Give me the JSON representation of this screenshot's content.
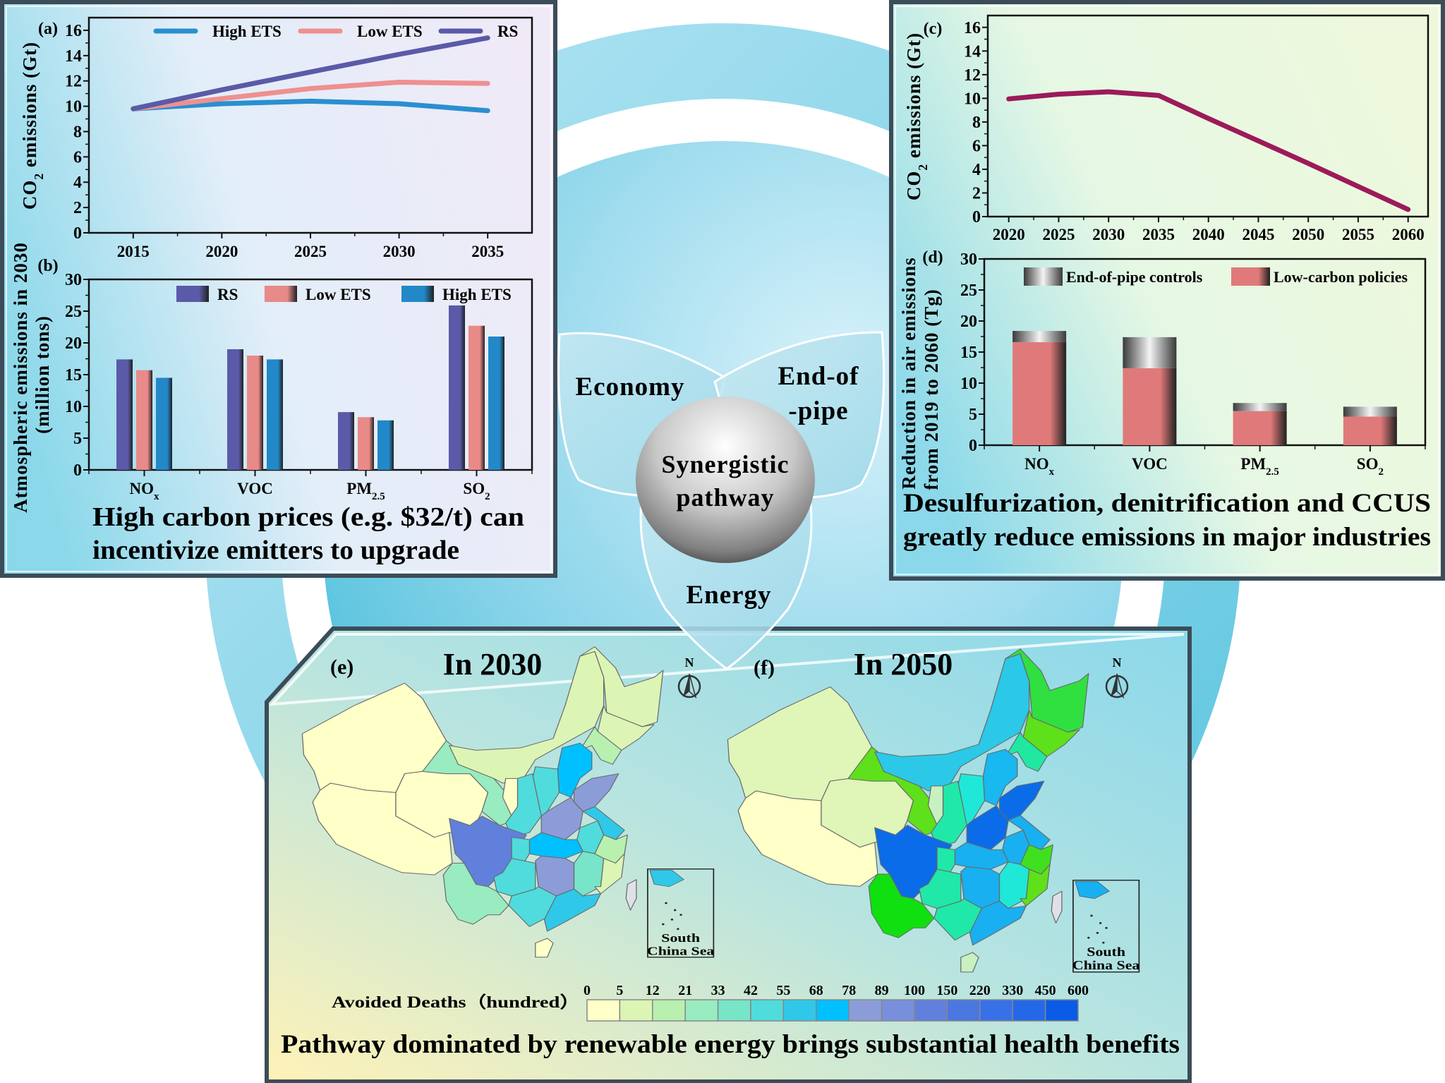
{
  "center": {
    "economy": "Economy",
    "end_of_pipe": [
      "End-of",
      "-pipe"
    ],
    "energy": "Energy",
    "core": [
      "Synergistic",
      "pathway"
    ]
  },
  "panel_left": {
    "caption": [
      "High carbon prices (e.g. $32/t) can",
      "incentivize emitters to upgrade"
    ]
  },
  "panel_right": {
    "caption": [
      "Desulfurization, denitrification and CCUS",
      "greatly reduce emissions in major industries"
    ]
  },
  "panel_bottom": {
    "caption": "Pathway dominated by renewable energy brings substantial health benefits",
    "north_label": "N",
    "inset_label": [
      "South",
      "China Sea"
    ],
    "legend_title": "Avoided Deaths（hundred）",
    "legend_ticks": [
      "0",
      "5",
      "12",
      "21",
      "33",
      "42",
      "55",
      "68",
      "78",
      "89",
      "100",
      "150",
      "220",
      "330",
      "450",
      "600"
    ],
    "legend_colors": [
      "#ffffc8",
      "#dcf5b4",
      "#b8f0b0",
      "#98ecc0",
      "#78e4c8",
      "#50dcdc",
      "#30c8e8",
      "#00c0ff",
      "#8c9cd8",
      "#7890dc",
      "#6080dc",
      "#4a78e0",
      "#3870e8",
      "#2468e8",
      "#0a5ce6"
    ],
    "maps": [
      {
        "panel_label": "(e)",
        "title": "In 2030",
        "region_colors": {
          "xinjiang": "#ffffc8",
          "tibet": "#ffffc8",
          "qinghai": "#ffffc8",
          "gansu": "#98ecc0",
          "inner_mongolia": "#dcf5b4",
          "heilongjiang": "#dcf5b4",
          "jilin": "#dcf5b4",
          "liaoning": "#b8f0b0",
          "hebei": "#00c0ff",
          "shanxi": "#50dcdc",
          "ningxia": "#ffffc8",
          "shaanxi": "#50dcdc",
          "shandong": "#8c9cd8",
          "henan": "#8c9cd8",
          "jiangsu": "#30c8e8",
          "anhui": "#50dcdc",
          "hubei": "#00c0ff",
          "sichuan": "#6080dc",
          "chongqing": "#50dcdc",
          "yunnan": "#98ecc0",
          "guizhou": "#50dcdc",
          "hunan": "#8c9cd8",
          "jiangxi": "#78e4c8",
          "zhejiang": "#b8f0b0",
          "fujian": "#dcf5b4",
          "guangxi": "#50dcdc",
          "guangdong": "#30c8e8",
          "hainan": "#ffffc8",
          "taiwan": "#e0e0e8"
        }
      },
      {
        "panel_label": "(f)",
        "title": "In 2050",
        "region_colors": {
          "xinjiang": "#e0f5b8",
          "tibet": "#ffffc8",
          "qinghai": "#e0f5b8",
          "gansu": "#5ee01a",
          "inner_mongolia": "#2cc8e8",
          "heilongjiang": "#30e040",
          "jilin": "#5ee01a",
          "liaoning": "#20e8a0",
          "hebei": "#18b8f0",
          "shanxi": "#20e8d8",
          "ningxia": "#c8f0c0",
          "shaanxi": "#20e8a8",
          "shandong": "#0a6ce8",
          "henan": "#0a6ce8",
          "jiangsu": "#18b0f0",
          "anhui": "#18b0f0",
          "hubei": "#18b0f0",
          "sichuan": "#0a6ce8",
          "chongqing": "#20e8a8",
          "yunnan": "#10e010",
          "guizhou": "#20e8a8",
          "hunan": "#18b0f0",
          "jiangxi": "#20e8d8",
          "zhejiang": "#40e020",
          "fujian": "#5ee01a",
          "guangxi": "#20e8a8",
          "guangdong": "#18b0f0",
          "hainan": "#c8f0c0",
          "taiwan": "#e0e0e8"
        }
      }
    ]
  },
  "chart_data": [
    {
      "id": "a",
      "panel_label": "(a)",
      "type": "line",
      "ylabel": "CO2 emissions (Gt)",
      "xlabel": "",
      "x": [
        2015,
        2020,
        2025,
        2030,
        2035
      ],
      "xticks": [
        2015,
        2020,
        2025,
        2030,
        2035
      ],
      "yticks": [
        0,
        2,
        4,
        6,
        8,
        10,
        12,
        14,
        16
      ],
      "xlim": [
        2012.5,
        2037.5
      ],
      "ylim": [
        0,
        17
      ],
      "grid": false,
      "legend": "top",
      "series": [
        {
          "name": "High ETS",
          "color": "#2a8fd0",
          "values": [
            9.8,
            10.2,
            10.4,
            10.2,
            9.65
          ]
        },
        {
          "name": "Low ETS",
          "color": "#ee9090",
          "values": [
            9.8,
            10.6,
            11.4,
            11.9,
            11.8
          ]
        },
        {
          "name": "RS",
          "color": "#5a5aa8",
          "values": [
            9.8,
            11.3,
            12.7,
            14.1,
            15.4
          ]
        }
      ]
    },
    {
      "id": "b",
      "panel_label": "(b)",
      "type": "bar",
      "ylabel": [
        "Atmospheric emissions in 2030",
        "(million tons)"
      ],
      "categories": [
        "NOx",
        "VOC",
        "PM2.5",
        "SO2"
      ],
      "yticks": [
        0,
        5,
        10,
        15,
        20,
        25,
        30
      ],
      "ylim": [
        0,
        30
      ],
      "grid": false,
      "legend": "top-right",
      "series": [
        {
          "name": "RS",
          "color": "#5a5aa8",
          "values": [
            17.4,
            19.0,
            9.1,
            25.9
          ]
        },
        {
          "name": "Low ETS",
          "color": "#e88a88",
          "values": [
            15.7,
            18.0,
            8.3,
            22.7
          ]
        },
        {
          "name": "High ETS",
          "color": "#2288c8",
          "values": [
            14.5,
            17.4,
            7.8,
            21.0
          ]
        }
      ]
    },
    {
      "id": "c",
      "panel_label": "(c)",
      "type": "line",
      "ylabel": "CO2 emissions (Gt)",
      "xlabel": "",
      "x": [
        2020,
        2025,
        2030,
        2035,
        2040,
        2045,
        2050,
        2055,
        2060
      ],
      "xticks": [
        2020,
        2025,
        2030,
        2035,
        2040,
        2045,
        2050,
        2055,
        2060
      ],
      "yticks": [
        0,
        2,
        4,
        6,
        8,
        10,
        12,
        14,
        16
      ],
      "xlim": [
        2017.9,
        2062
      ],
      "ylim": [
        0,
        17
      ],
      "grid": false,
      "series": [
        {
          "color": "#9c1a5a",
          "values": [
            9.95,
            10.35,
            10.55,
            10.25,
            8.3,
            6.4,
            4.5,
            2.55,
            0.6
          ]
        }
      ]
    },
    {
      "id": "d",
      "panel_label": "(d)",
      "type": "bar",
      "stacked": true,
      "ylabel": [
        "Reduction in air emissions",
        "from 2019 to 2060 (Tg)"
      ],
      "categories": [
        "NOx",
        "VOC",
        "PM2.5",
        "SO2"
      ],
      "yticks": [
        0,
        5,
        10,
        15,
        20,
        25,
        30
      ],
      "ylim": [
        0,
        30
      ],
      "grid": false,
      "legend": "top-right",
      "series": [
        {
          "name": "Low-carbon policies",
          "color": "#e07a7a",
          "values": [
            16.6,
            12.4,
            5.5,
            4.6
          ]
        },
        {
          "name": "End-of-pipe controls",
          "color": "#e8e8e8",
          "values": [
            1.8,
            5.0,
            1.3,
            1.6
          ]
        }
      ],
      "legend_order": [
        "End-of-pipe controls",
        "Low-carbon policies"
      ]
    }
  ]
}
